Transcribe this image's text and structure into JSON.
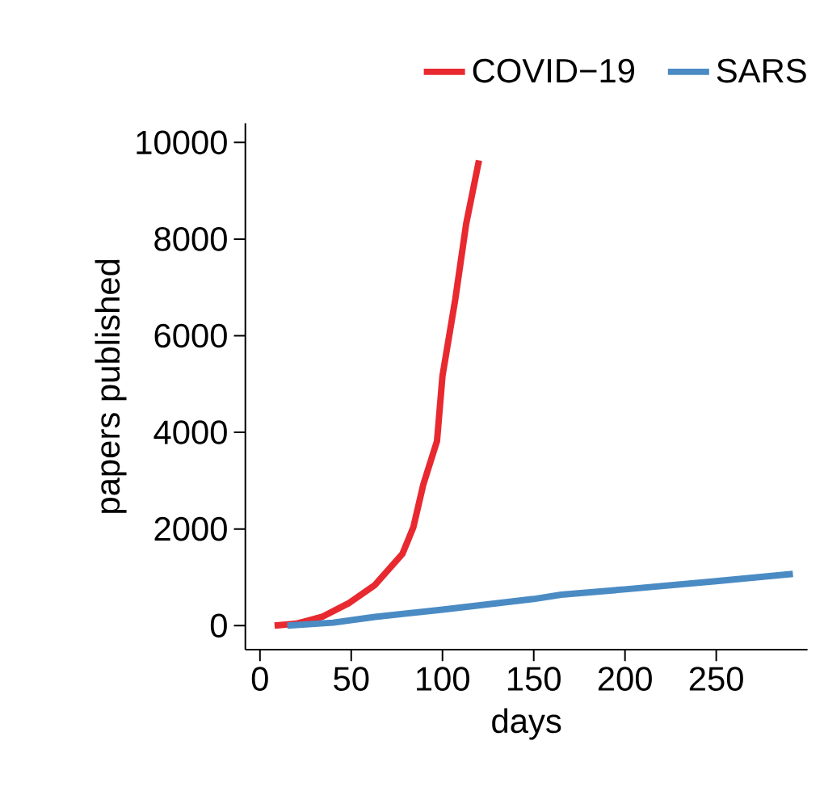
{
  "chart_data": {
    "type": "line",
    "xlabel": "days",
    "ylabel": "papers published",
    "xlim": [
      -8,
      300
    ],
    "ylim": [
      -500,
      10400
    ],
    "xticks": [
      0,
      50,
      100,
      150,
      200,
      250
    ],
    "yticks": [
      0,
      2000,
      4000,
      6000,
      8000,
      10000
    ],
    "legend": "top right",
    "grid": false,
    "marker": "none",
    "line_style": "solid",
    "series": [
      {
        "name": "COVID−19",
        "color": "#e8292f",
        "x": [
          8,
          20,
          34,
          49,
          63,
          78,
          84,
          89.5,
          97,
          100,
          107,
          113,
          120
        ],
        "values": [
          0,
          40,
          180,
          470,
          840,
          1480,
          2030,
          2920,
          3820,
          5170,
          6750,
          8320,
          9630
        ]
      },
      {
        "name": "SARS",
        "color": "#4a8bc4",
        "x": [
          15,
          40,
          63,
          100,
          150,
          165,
          200,
          250,
          292
        ],
        "values": [
          0,
          60,
          180,
          330,
          550,
          640,
          750,
          920,
          1070
        ]
      }
    ]
  }
}
